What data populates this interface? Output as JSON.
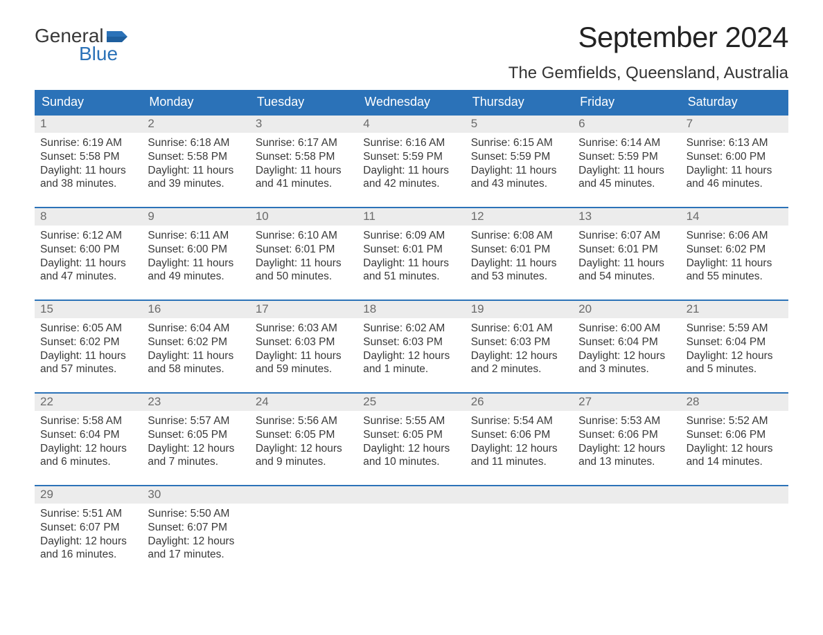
{
  "logo": {
    "word1": "General",
    "word2": "Blue",
    "accent_color": "#2b72b8"
  },
  "title": "September 2024",
  "location": "The Gemfields, Queensland, Australia",
  "colors": {
    "header_bg": "#2b72b8",
    "header_text": "#ffffff",
    "date_bg": "#ececec",
    "date_text": "#6a6a6a",
    "body_text": "#383838",
    "page_bg": "#ffffff"
  },
  "day_names": [
    "Sunday",
    "Monday",
    "Tuesday",
    "Wednesday",
    "Thursday",
    "Friday",
    "Saturday"
  ],
  "weeks": [
    [
      {
        "n": "1",
        "sunrise": "6:19 AM",
        "sunset": "5:58 PM",
        "dl1": "11 hours",
        "dl2": "and 38 minutes."
      },
      {
        "n": "2",
        "sunrise": "6:18 AM",
        "sunset": "5:58 PM",
        "dl1": "11 hours",
        "dl2": "and 39 minutes."
      },
      {
        "n": "3",
        "sunrise": "6:17 AM",
        "sunset": "5:58 PM",
        "dl1": "11 hours",
        "dl2": "and 41 minutes."
      },
      {
        "n": "4",
        "sunrise": "6:16 AM",
        "sunset": "5:59 PM",
        "dl1": "11 hours",
        "dl2": "and 42 minutes."
      },
      {
        "n": "5",
        "sunrise": "6:15 AM",
        "sunset": "5:59 PM",
        "dl1": "11 hours",
        "dl2": "and 43 minutes."
      },
      {
        "n": "6",
        "sunrise": "6:14 AM",
        "sunset": "5:59 PM",
        "dl1": "11 hours",
        "dl2": "and 45 minutes."
      },
      {
        "n": "7",
        "sunrise": "6:13 AM",
        "sunset": "6:00 PM",
        "dl1": "11 hours",
        "dl2": "and 46 minutes."
      }
    ],
    [
      {
        "n": "8",
        "sunrise": "6:12 AM",
        "sunset": "6:00 PM",
        "dl1": "11 hours",
        "dl2": "and 47 minutes."
      },
      {
        "n": "9",
        "sunrise": "6:11 AM",
        "sunset": "6:00 PM",
        "dl1": "11 hours",
        "dl2": "and 49 minutes."
      },
      {
        "n": "10",
        "sunrise": "6:10 AM",
        "sunset": "6:01 PM",
        "dl1": "11 hours",
        "dl2": "and 50 minutes."
      },
      {
        "n": "11",
        "sunrise": "6:09 AM",
        "sunset": "6:01 PM",
        "dl1": "11 hours",
        "dl2": "and 51 minutes."
      },
      {
        "n": "12",
        "sunrise": "6:08 AM",
        "sunset": "6:01 PM",
        "dl1": "11 hours",
        "dl2": "and 53 minutes."
      },
      {
        "n": "13",
        "sunrise": "6:07 AM",
        "sunset": "6:01 PM",
        "dl1": "11 hours",
        "dl2": "and 54 minutes."
      },
      {
        "n": "14",
        "sunrise": "6:06 AM",
        "sunset": "6:02 PM",
        "dl1": "11 hours",
        "dl2": "and 55 minutes."
      }
    ],
    [
      {
        "n": "15",
        "sunrise": "6:05 AM",
        "sunset": "6:02 PM",
        "dl1": "11 hours",
        "dl2": "and 57 minutes."
      },
      {
        "n": "16",
        "sunrise": "6:04 AM",
        "sunset": "6:02 PM",
        "dl1": "11 hours",
        "dl2": "and 58 minutes."
      },
      {
        "n": "17",
        "sunrise": "6:03 AM",
        "sunset": "6:03 PM",
        "dl1": "11 hours",
        "dl2": "and 59 minutes."
      },
      {
        "n": "18",
        "sunrise": "6:02 AM",
        "sunset": "6:03 PM",
        "dl1": "12 hours",
        "dl2": "and 1 minute."
      },
      {
        "n": "19",
        "sunrise": "6:01 AM",
        "sunset": "6:03 PM",
        "dl1": "12 hours",
        "dl2": "and 2 minutes."
      },
      {
        "n": "20",
        "sunrise": "6:00 AM",
        "sunset": "6:04 PM",
        "dl1": "12 hours",
        "dl2": "and 3 minutes."
      },
      {
        "n": "21",
        "sunrise": "5:59 AM",
        "sunset": "6:04 PM",
        "dl1": "12 hours",
        "dl2": "and 5 minutes."
      }
    ],
    [
      {
        "n": "22",
        "sunrise": "5:58 AM",
        "sunset": "6:04 PM",
        "dl1": "12 hours",
        "dl2": "and 6 minutes."
      },
      {
        "n": "23",
        "sunrise": "5:57 AM",
        "sunset": "6:05 PM",
        "dl1": "12 hours",
        "dl2": "and 7 minutes."
      },
      {
        "n": "24",
        "sunrise": "5:56 AM",
        "sunset": "6:05 PM",
        "dl1": "12 hours",
        "dl2": "and 9 minutes."
      },
      {
        "n": "25",
        "sunrise": "5:55 AM",
        "sunset": "6:05 PM",
        "dl1": "12 hours",
        "dl2": "and 10 minutes."
      },
      {
        "n": "26",
        "sunrise": "5:54 AM",
        "sunset": "6:06 PM",
        "dl1": "12 hours",
        "dl2": "and 11 minutes."
      },
      {
        "n": "27",
        "sunrise": "5:53 AM",
        "sunset": "6:06 PM",
        "dl1": "12 hours",
        "dl2": "and 13 minutes."
      },
      {
        "n": "28",
        "sunrise": "5:52 AM",
        "sunset": "6:06 PM",
        "dl1": "12 hours",
        "dl2": "and 14 minutes."
      }
    ],
    [
      {
        "n": "29",
        "sunrise": "5:51 AM",
        "sunset": "6:07 PM",
        "dl1": "12 hours",
        "dl2": "and 16 minutes."
      },
      {
        "n": "30",
        "sunrise": "5:50 AM",
        "sunset": "6:07 PM",
        "dl1": "12 hours",
        "dl2": "and 17 minutes."
      },
      {
        "empty": true
      },
      {
        "empty": true
      },
      {
        "empty": true
      },
      {
        "empty": true
      },
      {
        "empty": true
      }
    ]
  ],
  "labels": {
    "sunrise_prefix": "Sunrise: ",
    "sunset_prefix": "Sunset: ",
    "daylight_prefix": "Daylight: "
  }
}
